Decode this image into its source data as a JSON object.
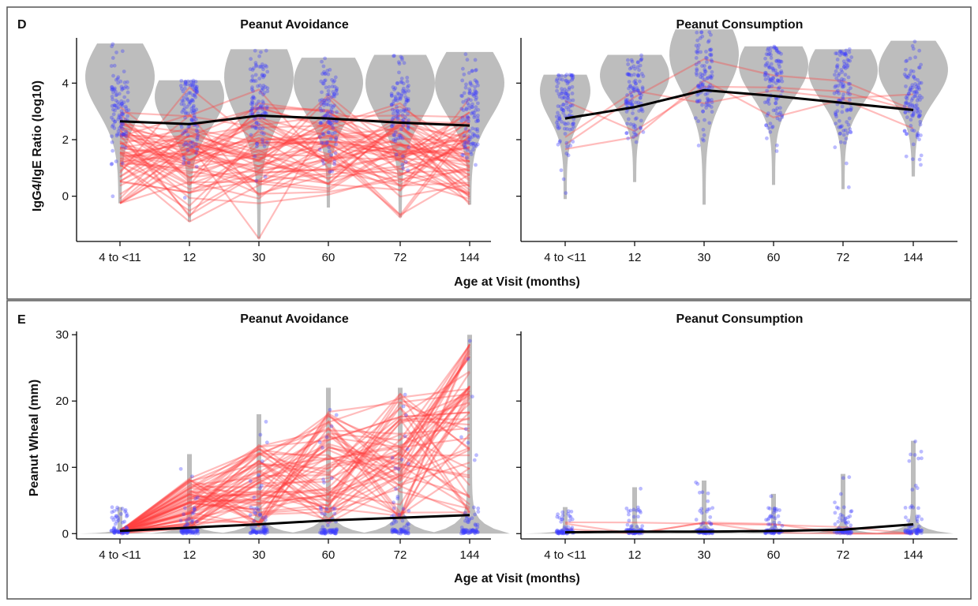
{
  "figure": {
    "panels": [
      {
        "letter": "D",
        "xlabel": "Age at Visit (months)",
        "ylabel": "IgG4/IgE Ratio (log10)",
        "subplots": [
          {
            "title": "Peanut Avoidance"
          },
          {
            "title": "Peanut Consumption"
          }
        ]
      },
      {
        "letter": "E",
        "xlabel": "Age at Visit (months)",
        "ylabel": "Peanut Wheal (mm)",
        "subplots": [
          {
            "title": "Peanut Avoidance"
          },
          {
            "title": "Peanut Consumption"
          }
        ]
      }
    ]
  },
  "colors": {
    "violin": "#bdbdbd",
    "points": "#3b3bff",
    "individual_lines": "#ff4040",
    "median_line": "#000000",
    "frame": "#555555"
  },
  "chart_data": [
    {
      "type": "violin",
      "panel": "D",
      "title": "Peanut Avoidance",
      "categories": [
        "4 to <11",
        "12",
        "30",
        "60",
        "72",
        "144"
      ],
      "ylim": [
        -1.6,
        5.6
      ],
      "yticks": [
        0,
        2,
        4
      ],
      "medians": [
        2.65,
        2.55,
        2.85,
        2.75,
        2.6,
        2.5
      ],
      "ranges": [
        [
          -0.25,
          5.4
        ],
        [
          -0.9,
          4.1
        ],
        [
          -1.5,
          5.2
        ],
        [
          -0.4,
          4.9
        ],
        [
          -0.75,
          5.0
        ],
        [
          -0.3,
          5.1
        ]
      ],
      "n_individual_trajectories": 60
    },
    {
      "type": "violin",
      "panel": "D",
      "title": "Peanut Consumption",
      "categories": [
        "4 to <11",
        "12",
        "30",
        "60",
        "72",
        "144"
      ],
      "ylim": [
        -1.6,
        5.6
      ],
      "yticks": [
        0,
        2,
        4
      ],
      "medians": [
        2.75,
        3.15,
        3.75,
        3.55,
        3.3,
        3.05
      ],
      "ranges": [
        [
          -0.1,
          4.3
        ],
        [
          0.5,
          5.0
        ],
        [
          -0.3,
          5.9
        ],
        [
          0.4,
          5.3
        ],
        [
          0.25,
          5.2
        ],
        [
          0.7,
          5.5
        ]
      ],
      "n_individual_trajectories": 4
    },
    {
      "type": "violin",
      "panel": "E",
      "title": "Peanut Avoidance",
      "categories": [
        "4 to <11",
        "12",
        "30",
        "60",
        "72",
        "144"
      ],
      "ylim": [
        -0.8,
        30.5
      ],
      "yticks": [
        0,
        10,
        20,
        30
      ],
      "medians": [
        0.4,
        0.9,
        1.4,
        2.0,
        2.4,
        2.8
      ],
      "ranges": [
        [
          0,
          4
        ],
        [
          0,
          12
        ],
        [
          0,
          18
        ],
        [
          0,
          22
        ],
        [
          0,
          22
        ],
        [
          0,
          30
        ]
      ],
      "n_individual_trajectories": 60
    },
    {
      "type": "violin",
      "panel": "E",
      "title": "Peanut Consumption",
      "categories": [
        "4 to <11",
        "12",
        "30",
        "60",
        "72",
        "144"
      ],
      "ylim": [
        -0.8,
        30.5
      ],
      "yticks": [
        0,
        10,
        20,
        30
      ],
      "medians": [
        0.2,
        0.3,
        0.3,
        0.4,
        0.6,
        1.4
      ],
      "ranges": [
        [
          0,
          4
        ],
        [
          0,
          7
        ],
        [
          0,
          8
        ],
        [
          0,
          6
        ],
        [
          0,
          9
        ],
        [
          0,
          14
        ]
      ],
      "n_individual_trajectories": 3
    }
  ]
}
